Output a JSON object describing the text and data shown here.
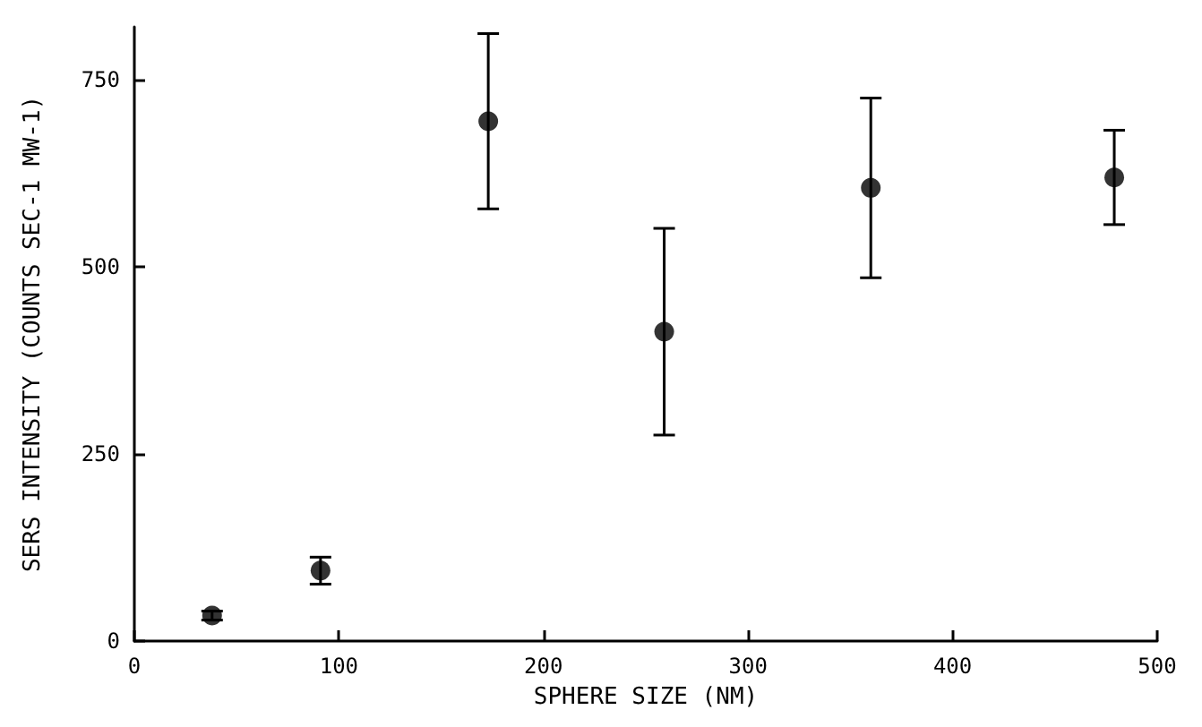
{
  "chart_data": {
    "type": "scatter",
    "xlabel": "SPHERE SIZE (NM)",
    "ylabel": "SERS INTENSITY (COUNTS SEC-1 MW-1)",
    "x": [
      38,
      91,
      173,
      259,
      360,
      479
    ],
    "values": [
      34,
      94,
      694,
      413,
      605,
      619
    ],
    "errors": [
      6,
      18,
      117,
      138,
      120,
      63
    ],
    "color": "#000000",
    "marker": "circle",
    "grid": false,
    "xlim": [
      0,
      500
    ],
    "xticks": [
      0,
      100,
      200,
      300,
      400,
      500
    ],
    "ylim": [
      0,
      820
    ],
    "yticks": [
      0,
      250,
      500,
      750
    ]
  }
}
